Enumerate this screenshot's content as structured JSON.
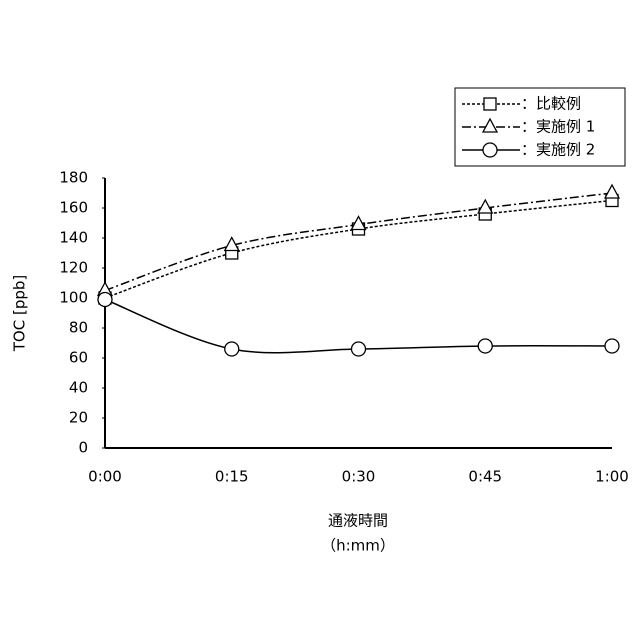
{
  "chart_data": {
    "type": "line",
    "x_label": [
      "通液時間",
      "（h:mm）"
    ],
    "y_label": "TOC [ppb]",
    "categories": [
      "0:00",
      "0:15",
      "0:30",
      "0:45",
      "1:00"
    ],
    "series": [
      {
        "name": "：比較例",
        "color": "#000000",
        "dash": "3,2",
        "marker": "square",
        "values": [
          100,
          130,
          146,
          156,
          165
        ]
      },
      {
        "name": "：実施例 1",
        "color": "#000000",
        "dash": "9,3,2,3",
        "marker": "triangle",
        "values": [
          105,
          135,
          149,
          160,
          170
        ]
      },
      {
        "name": "：実施例 2",
        "color": "#000000",
        "dash": "none",
        "marker": "circle",
        "values": [
          99,
          66,
          66,
          68,
          68
        ]
      }
    ],
    "ylim": [
      0,
      180
    ],
    "yticks": [
      0,
      20,
      40,
      60,
      80,
      100,
      120,
      140,
      160,
      180
    ],
    "grid": false,
    "legend": "upper right"
  }
}
